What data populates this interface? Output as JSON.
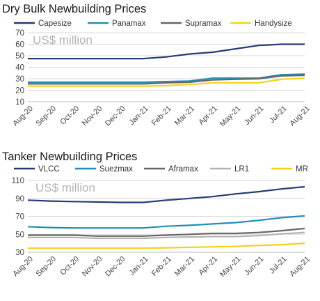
{
  "chart_data": [
    {
      "type": "line",
      "title": "Dry Bulk Newbuilding Prices",
      "unit_label": "US$ million",
      "xlabel": "",
      "ylabel": "",
      "ylim": [
        10,
        70
      ],
      "yticks": [
        10,
        20,
        30,
        40,
        50,
        60,
        70
      ],
      "grid": true,
      "legend_position": "top",
      "categories": [
        "Aug-20",
        "Sep-20",
        "Oct-20",
        "Nov-20",
        "Dec-20",
        "Jan-21",
        "Feb-21",
        "Mar-21",
        "Apr-21",
        "May-21",
        "Jun-21",
        "Jul-21",
        "Aug-21"
      ],
      "series": [
        {
          "name": "Capesize",
          "color": "#243c75",
          "values": [
            47.5,
            47.5,
            47.5,
            47.5,
            47.5,
            47.5,
            49.0,
            51.5,
            53.0,
            56.0,
            59.0,
            60.0,
            60.0
          ]
        },
        {
          "name": "Panamax",
          "color": "#1f8fb8",
          "values": [
            27.0,
            27.0,
            27.0,
            27.0,
            27.0,
            27.0,
            27.5,
            28.0,
            30.5,
            30.5,
            30.5,
            33.5,
            34.0
          ]
        },
        {
          "name": "Supramax",
          "color": "#666666",
          "values": [
            25.5,
            25.5,
            25.5,
            25.5,
            25.5,
            25.5,
            26.5,
            27.0,
            29.0,
            29.5,
            30.0,
            32.5,
            33.0
          ]
        },
        {
          "name": "Handysize",
          "color": "#f5d21a",
          "values": [
            23.5,
            23.5,
            23.5,
            23.5,
            23.5,
            23.5,
            24.0,
            25.0,
            26.5,
            26.5,
            26.5,
            29.5,
            30.5
          ]
        }
      ]
    },
    {
      "type": "line",
      "title": "Tanker Newbuilding Prices",
      "unit_label": "US$ million",
      "xlabel": "",
      "ylabel": "",
      "ylim": [
        30,
        110
      ],
      "yticks": [
        30,
        50,
        70,
        90,
        110
      ],
      "grid": true,
      "legend_position": "top",
      "categories": [
        "Aug-20",
        "Sep-20",
        "Oct-20",
        "Nov-20",
        "Dec-20",
        "Jan-21",
        "Feb-21",
        "Mar-21",
        "Apr-21",
        "May-21",
        "Jun-21",
        "Jul-21",
        "Aug-21"
      ],
      "series": [
        {
          "name": "VLCC",
          "color": "#243c75",
          "values": [
            88.0,
            87.0,
            86.5,
            86.0,
            85.5,
            85.5,
            88.0,
            90.0,
            92.0,
            95.0,
            97.5,
            100.5,
            103.0
          ]
        },
        {
          "name": "Suezmax",
          "color": "#1f8fb8",
          "values": [
            58.5,
            57.5,
            57.0,
            57.0,
            57.0,
            57.0,
            59.0,
            60.0,
            61.5,
            63.0,
            65.5,
            68.5,
            70.5
          ]
        },
        {
          "name": "Aframax",
          "color": "#666666",
          "values": [
            49.0,
            49.0,
            49.0,
            48.0,
            48.0,
            48.0,
            49.0,
            50.0,
            51.0,
            51.0,
            52.0,
            54.0,
            56.5
          ]
        },
        {
          "name": "LR1",
          "color": "#b3b3b3",
          "values": [
            46.5,
            46.5,
            46.5,
            45.5,
            45.5,
            45.5,
            46.5,
            47.0,
            47.5,
            47.5,
            48.5,
            50.5,
            52.0
          ]
        },
        {
          "name": "MR",
          "color": "#f5d21a",
          "values": [
            34.5,
            34.5,
            34.5,
            34.5,
            34.5,
            34.5,
            35.0,
            35.5,
            36.0,
            36.5,
            37.5,
            38.5,
            40.0
          ]
        }
      ]
    }
  ]
}
